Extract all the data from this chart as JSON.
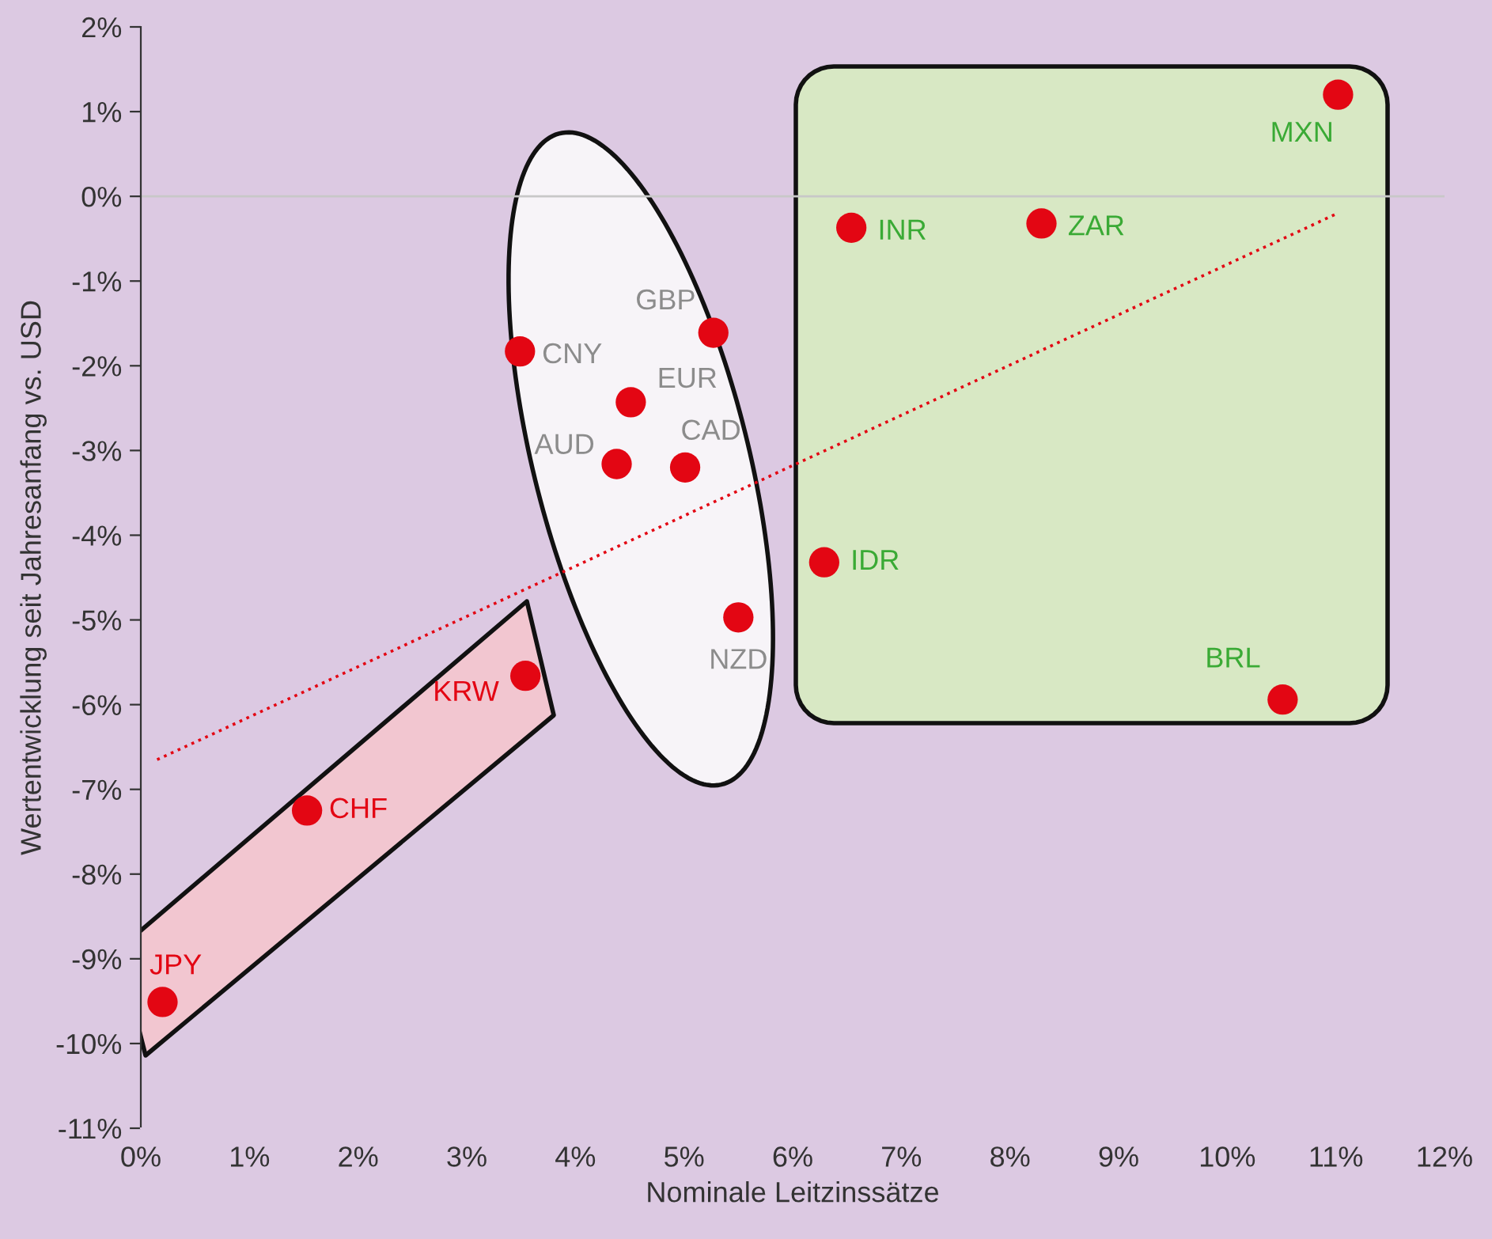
{
  "chart_data": {
    "type": "scatter",
    "xlabel": "Nominale Leitzinssätze",
    "ylabel": "Wertentwicklung seit Jahresanfang vs. USD",
    "xlim": [
      0,
      12
    ],
    "ylim": [
      -11,
      2
    ],
    "xticks": [
      {
        "value": 0,
        "label": "0%"
      },
      {
        "value": 1,
        "label": "1%"
      },
      {
        "value": 2,
        "label": "2%"
      },
      {
        "value": 3,
        "label": "3%"
      },
      {
        "value": 4,
        "label": "4%"
      },
      {
        "value": 5,
        "label": "5%"
      },
      {
        "value": 6,
        "label": "6%"
      },
      {
        "value": 7,
        "label": "7%"
      },
      {
        "value": 8,
        "label": "8%"
      },
      {
        "value": 9,
        "label": "9%"
      },
      {
        "value": 10,
        "label": "10%"
      },
      {
        "value": 11,
        "label": "11%"
      },
      {
        "value": 12,
        "label": "12%"
      }
    ],
    "yticks": [
      {
        "value": 2,
        "label": "2%"
      },
      {
        "value": 1,
        "label": "1%"
      },
      {
        "value": 0,
        "label": "0%"
      },
      {
        "value": -1,
        "label": "-1%"
      },
      {
        "value": -2,
        "label": "-2%"
      },
      {
        "value": -3,
        "label": "-3%"
      },
      {
        "value": -4,
        "label": "-4%"
      },
      {
        "value": -5,
        "label": "-5%"
      },
      {
        "value": -6,
        "label": "-6%"
      },
      {
        "value": -7,
        "label": "-7%"
      },
      {
        "value": -8,
        "label": "-8%"
      },
      {
        "value": -9,
        "label": "-9%"
      },
      {
        "value": -10,
        "label": "-10%"
      },
      {
        "value": -11,
        "label": "-11%"
      }
    ],
    "marker": "circle",
    "grid": false,
    "legend": false,
    "series": [
      {
        "color": "#e30613",
        "x": [
          0.2,
          1.53,
          3.54
        ],
        "values": [
          -9.51,
          -7.25,
          -5.66
        ]
      },
      {
        "color": "#e30613",
        "x": [
          3.49,
          5.27,
          4.51,
          4.38,
          5.01,
          5.5
        ],
        "values": [
          -1.83,
          -1.61,
          -2.43,
          -3.16,
          -3.2,
          -4.97
        ]
      },
      {
        "color": "#e30613",
        "x": [
          6.54,
          8.29,
          6.29,
          10.51,
          11.02
        ],
        "values": [
          -0.37,
          -0.32,
          -4.32,
          -5.94,
          1.2
        ]
      },
      {
        "type": "line",
        "color": "#e30613",
        "line_style": "dotted",
        "marker": "none",
        "x": [
          0.15,
          11.0
        ],
        "values": [
          -6.65,
          -0.21
        ]
      }
    ],
    "ref_lines": [
      {
        "axis": "y",
        "value": 0,
        "color": "#c8c8c8"
      }
    ],
    "annotations": [
      {
        "text": "JPY",
        "x": 0.2,
        "y": -9.51
      },
      {
        "text": "CHF",
        "x": 1.53,
        "y": -7.25
      },
      {
        "text": "KRW",
        "x": 3.54,
        "y": -5.66
      },
      {
        "text": "CNY",
        "x": 3.49,
        "y": -1.83
      },
      {
        "text": "GBP",
        "x": 5.27,
        "y": -1.61
      },
      {
        "text": "EUR",
        "x": 4.51,
        "y": -2.43
      },
      {
        "text": "AUD",
        "x": 4.38,
        "y": -3.16
      },
      {
        "text": "CAD",
        "x": 5.01,
        "y": -3.2
      },
      {
        "text": "NZD",
        "x": 5.5,
        "y": -4.97
      },
      {
        "text": "INR",
        "x": 6.54,
        "y": -0.37
      },
      {
        "text": "ZAR",
        "x": 8.29,
        "y": -0.32
      },
      {
        "text": "IDR",
        "x": 6.29,
        "y": -4.32
      },
      {
        "text": "BRL",
        "x": 10.51,
        "y": -5.94
      },
      {
        "text": "MXN",
        "x": 11.02,
        "y": 1.2
      }
    ]
  }
}
